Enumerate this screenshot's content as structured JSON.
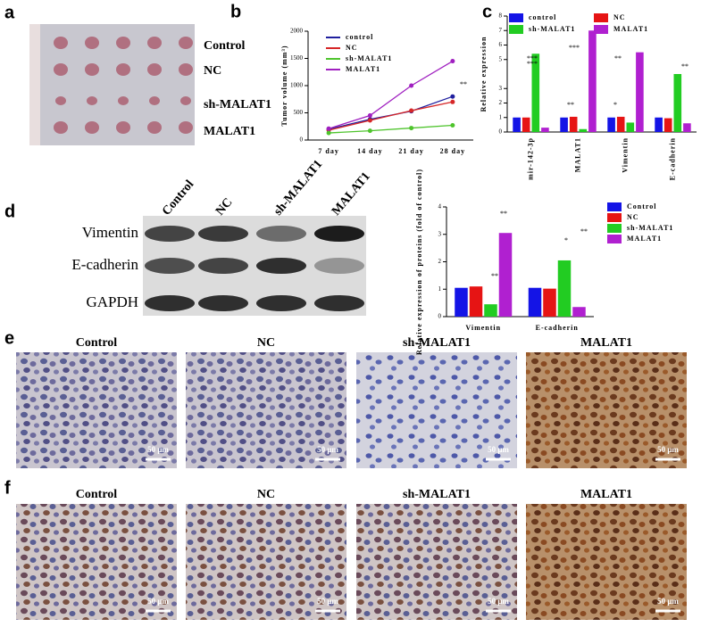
{
  "panel_letters": [
    "a",
    "b",
    "c",
    "d",
    "e",
    "f"
  ],
  "panel_a": {
    "labels": [
      "Control",
      "NC",
      "sh-MALAT1",
      "MALAT1"
    ]
  },
  "panel_d": {
    "lanes": [
      "Control",
      "NC",
      "sh-MALAT1",
      "MALAT1"
    ],
    "proteins": [
      "Vimentin",
      "E-cadherin",
      "GAPDH"
    ]
  },
  "panel_e": {
    "titles": [
      "Control",
      "NC",
      "sh-MALAT1",
      "MALAT1"
    ],
    "scale_bar": "50 μm"
  },
  "panel_f": {
    "titles": [
      "Control",
      "NC",
      "sh-MALAT1",
      "MALAT1"
    ],
    "scale_bar": "50 μm"
  },
  "chart_data": [
    {
      "type": "line",
      "y_label": "Tumor volume (mm³)",
      "categories": [
        "7 day",
        "14 day",
        "21 day",
        "28 day"
      ],
      "series": [
        {
          "name": "control",
          "color": "#1f1f9e",
          "values": [
            200,
            380,
            530,
            800
          ]
        },
        {
          "name": "NC",
          "color": "#d62728",
          "values": [
            180,
            360,
            540,
            700
          ]
        },
        {
          "name": "sh-MALAT1",
          "color": "#4ec42c",
          "values": [
            130,
            170,
            220,
            270
          ]
        },
        {
          "name": "MALAT1",
          "color": "#a020c0",
          "values": [
            210,
            450,
            1000,
            1450
          ]
        }
      ],
      "ylim": [
        0,
        2000
      ],
      "yticks": [
        0,
        500,
        1000,
        1500,
        2000
      ],
      "annotations": [
        "**"
      ]
    },
    {
      "type": "bar",
      "y_label": "Relative expression",
      "categories": [
        "mir-142-3p",
        "MALAT1",
        "Vimentin",
        "E-cadherin"
      ],
      "series": [
        {
          "name": "control",
          "color": "#1414e6",
          "values": [
            1,
            1,
            1,
            1
          ]
        },
        {
          "name": "NC",
          "color": "#e61414",
          "values": [
            1,
            1.05,
            1.05,
            0.95
          ]
        },
        {
          "name": "sh-MALAT1",
          "color": "#22cc22",
          "values": [
            5.4,
            0.2,
            0.65,
            4.0
          ]
        },
        {
          "name": "MALAT1",
          "color": "#b020d0",
          "values": [
            0.3,
            7.0,
            5.5,
            0.6
          ]
        }
      ],
      "ylim": [
        0,
        8
      ],
      "yticks": [
        0,
        1,
        2,
        3,
        5,
        6,
        7,
        8
      ],
      "annotations": [
        "***",
        "***",
        "***",
        "**",
        "*",
        "**",
        "**"
      ]
    },
    {
      "type": "bar",
      "y_label": "Relative expression of proteins (fold of control)",
      "categories": [
        "Vimentin",
        "E-cadherin"
      ],
      "series": [
        {
          "name": "Control",
          "color": "#1414e6",
          "values": [
            1.05,
            1.05
          ]
        },
        {
          "name": "NC",
          "color": "#e61414",
          "values": [
            1.1,
            1.02
          ]
        },
        {
          "name": "sh-MALAT1",
          "color": "#22cc22",
          "values": [
            0.45,
            2.05
          ]
        },
        {
          "name": "MALAT1",
          "color": "#b020d0",
          "values": [
            3.05,
            0.35
          ]
        }
      ],
      "ylim": [
        0,
        4
      ],
      "yticks": [
        0,
        1,
        2,
        3,
        4
      ],
      "annotations": [
        "**",
        "**",
        "*",
        "**"
      ]
    }
  ]
}
